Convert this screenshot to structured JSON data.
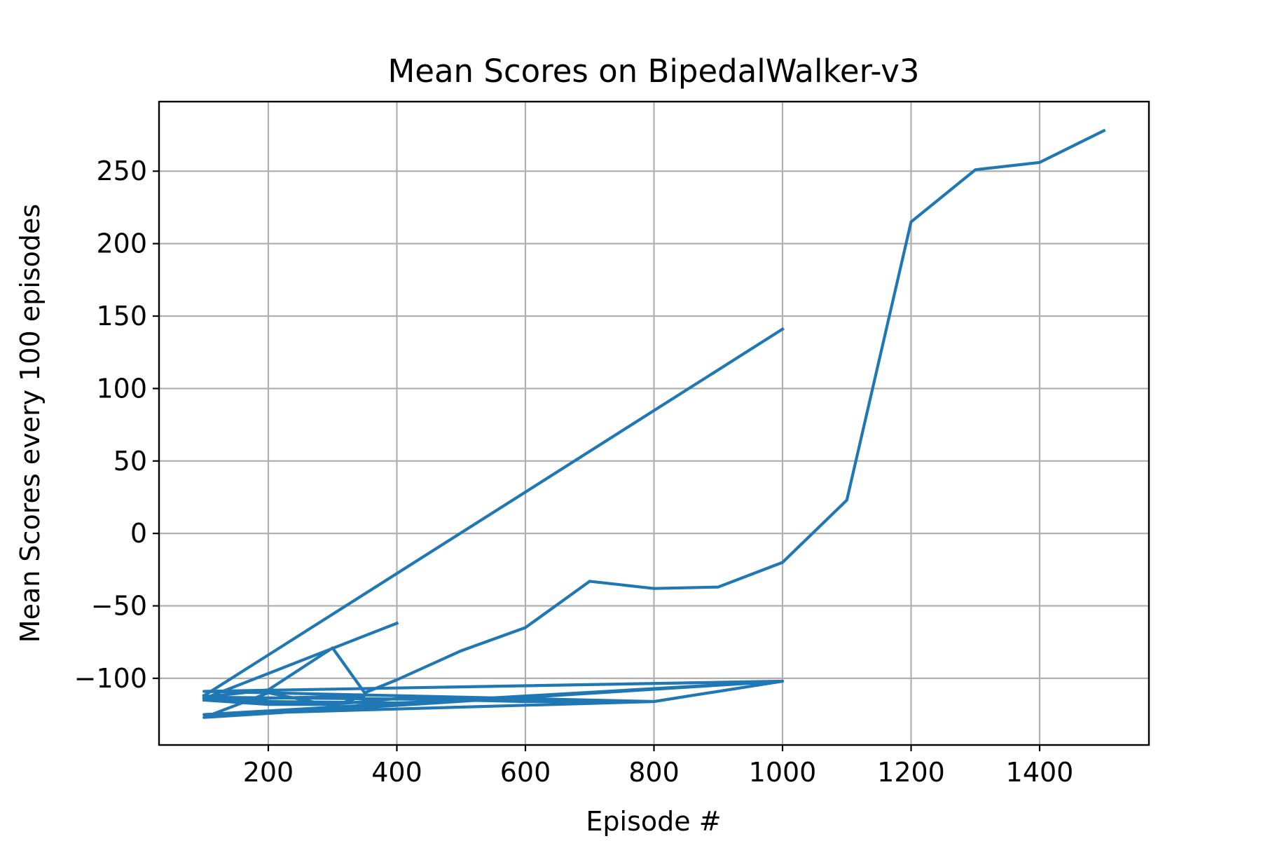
{
  "chart_data": {
    "type": "line",
    "title": "Mean Scores on BipedalWalker-v3",
    "xlabel": "Episode #",
    "ylabel": "Mean Scores every 100 episodes",
    "xlim": [
      30,
      1570
    ],
    "ylim": [
      -146,
      298
    ],
    "xticks": [
      200,
      400,
      600,
      800,
      1000,
      1200,
      1400
    ],
    "yticks": [
      -100,
      -50,
      0,
      50,
      100,
      150,
      200,
      250
    ],
    "grid": true,
    "legend": "none",
    "series": [
      {
        "color": "#1f77b4",
        "segments": [
          {
            "x": [
              100,
              400
            ],
            "y": [
              -114,
              -62
            ]
          },
          {
            "x": [
              100,
              1000
            ],
            "y": [
              -112,
              141
            ]
          },
          {
            "x": [
              100,
              200,
              300,
              350,
              400,
              500,
              600,
              700,
              800,
              900,
              1000,
              1100,
              1200,
              1300,
              1400,
              1500
            ],
            "y": [
              -113,
              -108,
              -79,
              -110,
              -101,
              -81,
              -65,
              -33,
              -38,
              -37,
              -20,
              23,
              215,
              251,
              256,
              278
            ]
          },
          {
            "x": [
              100,
              200,
              300,
              400,
              600,
              700,
              800,
              100,
              200,
              400,
              600,
              800,
              1000,
              100,
              800,
              100,
              1000,
              100,
              200,
              300,
              350,
              100,
              200,
              100
            ],
            "y": [
              -115,
              -118,
              -118,
              -114,
              -116,
              -116,
              -116,
              -113,
              -116,
              -117,
              -114,
              -116,
              -102,
              -125,
              -116,
              -109,
              -102,
              -127,
              -110,
              -119,
              -112,
              -115,
              -116,
              -112
            ]
          }
        ]
      }
    ]
  }
}
